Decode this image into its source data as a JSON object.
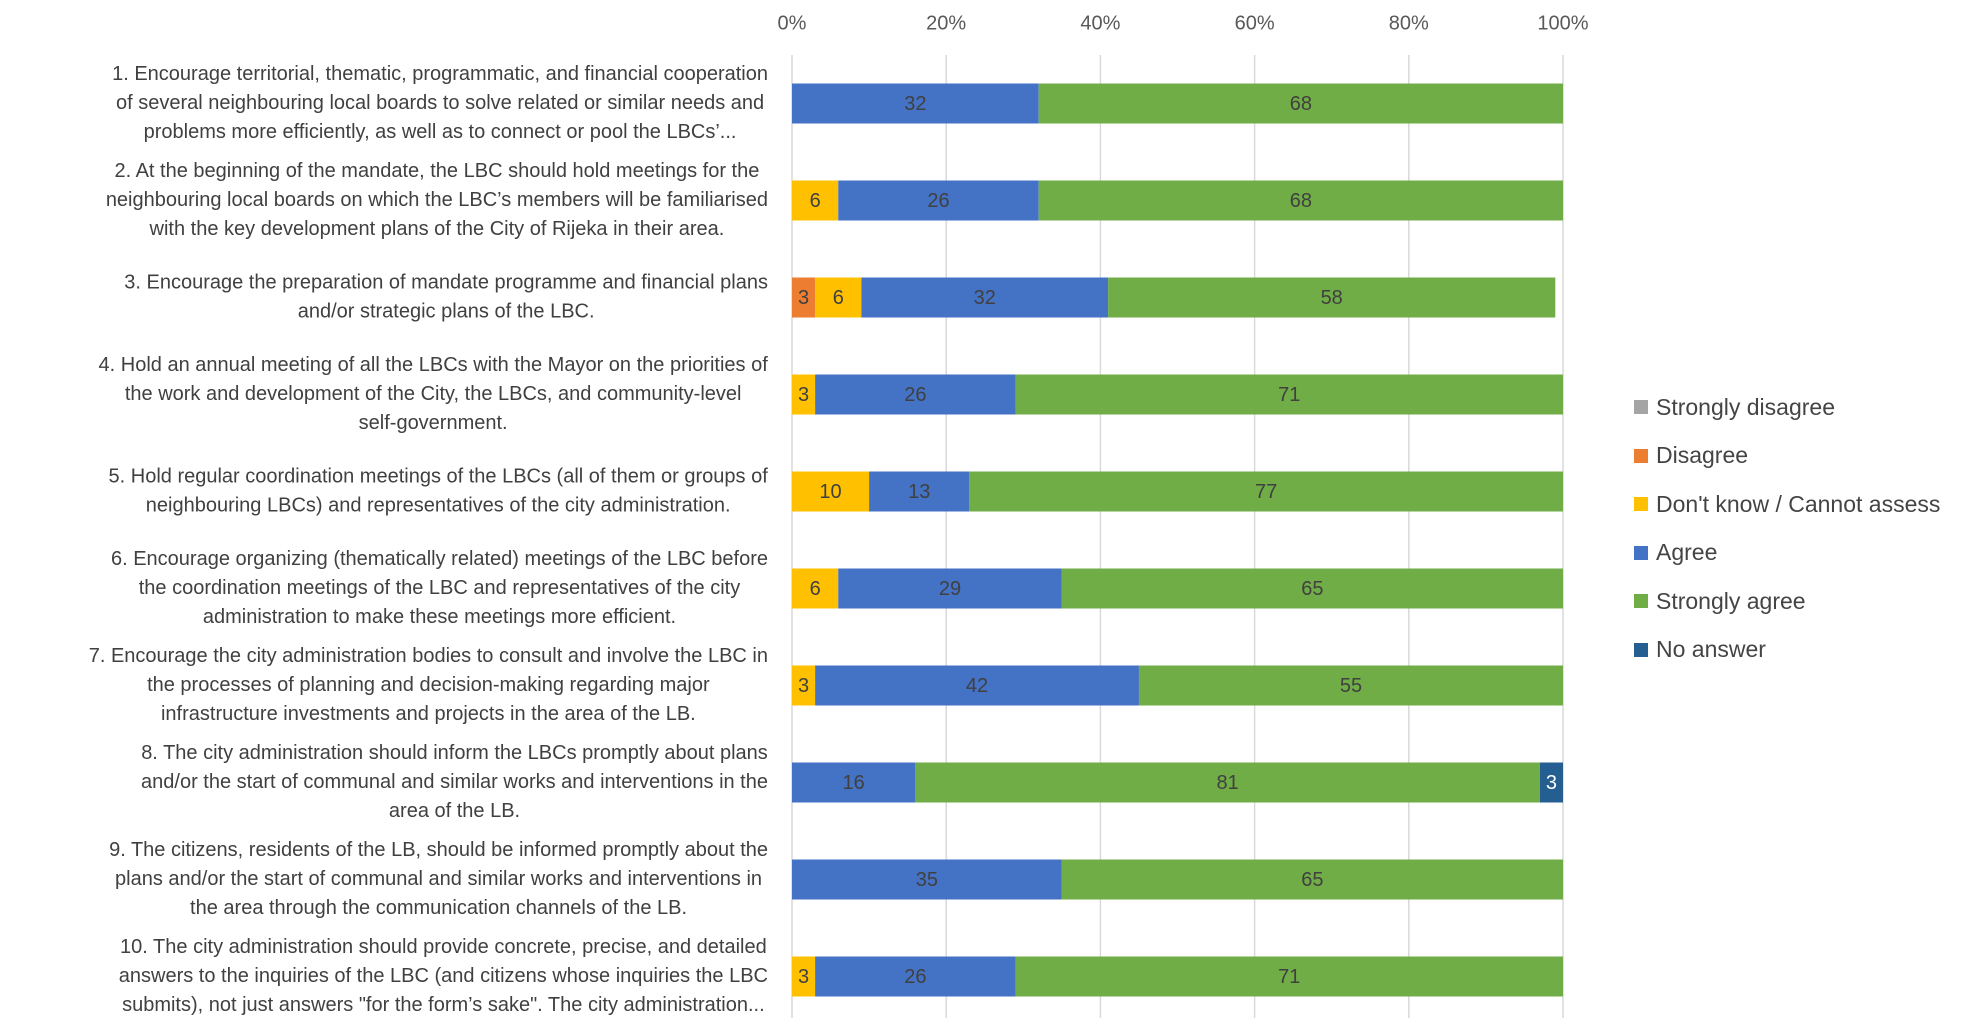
{
  "chart_data": {
    "type": "bar",
    "orientation": "horizontal",
    "stacked": "percent",
    "title": "",
    "xlabel": "",
    "ylabel": "",
    "xlim": [
      0,
      100
    ],
    "x_ticks": [
      "0%",
      "20%",
      "40%",
      "60%",
      "80%",
      "100%"
    ],
    "grid": true,
    "legend_position": "right",
    "categories": [
      [
        "1. Encourage territorial, thematic, programmatic, and financial cooperation",
        "of several neighbouring local boards to solve related or similar needs and",
        "problems more efficiently, as well as to connect or pool the LBCs’..."
      ],
      [
        "2. At the beginning of the mandate, the LBC should hold meetings for the",
        "neighbouring local boards on which the LBC’s members will be familiarised",
        "with the key development plans of the City of Rijeka in their area."
      ],
      [
        "3. Encourage the preparation of mandate programme and financial plans",
        "and/or strategic plans of the LBC."
      ],
      [
        "4. Hold an annual meeting of all the LBCs with the Mayor on the priorities of",
        "the work and development of the City, the LBCs, and community-level",
        "self-government."
      ],
      [
        "5. Hold regular coordination meetings of the LBCs (all of them or groups of",
        "neighbouring LBCs) and representatives of the city administration."
      ],
      [
        "6. Encourage organizing (thematically related) meetings of the LBC before",
        "the coordination meetings of the LBC and representatives of the city",
        "administration to make these meetings more efficient."
      ],
      [
        "7. Encourage the city administration bodies to consult and involve the LBC in",
        "the processes of planning and decision-making regarding major",
        "infrastructure investments and projects in the area of the LB."
      ],
      [
        "8. The city administration should inform the LBCs promptly about plans",
        "and/or the start of communal and similar works and interventions in the",
        "area of the LB."
      ],
      [
        "9. The citizens, residents of the LB, should be informed promptly about the",
        "plans and/or the start of communal and similar works and interventions in",
        "the area through the communication channels of the LB."
      ],
      [
        "10. The city administration should provide concrete, precise, and detailed",
        "answers to the inquiries of the LBC (and citizens whose inquiries the LBC",
        "submits), not just answers \"for the form’s sake\". The city administration..."
      ]
    ],
    "series": [
      {
        "name": "Strongly disagree",
        "color": "#A5A5A5",
        "values": [
          0,
          0,
          0,
          0,
          0,
          0,
          0,
          0,
          0,
          0
        ]
      },
      {
        "name": "Disagree",
        "color": "#ED7D31",
        "values": [
          0,
          0,
          3,
          0,
          0,
          0,
          0,
          0,
          0,
          0
        ]
      },
      {
        "name": "Don't know / Cannot assess",
        "color": "#FFC000",
        "values": [
          0,
          6,
          6,
          3,
          10,
          6,
          3,
          0,
          0,
          3
        ]
      },
      {
        "name": "Agree",
        "color": "#4472C4",
        "values": [
          32,
          26,
          32,
          26,
          13,
          29,
          42,
          16,
          35,
          26
        ]
      },
      {
        "name": "Strongly agree",
        "color": "#70AD47",
        "values": [
          68,
          68,
          58,
          71,
          77,
          65,
          55,
          81,
          65,
          71
        ]
      },
      {
        "name": "No answer",
        "color": "#255E91",
        "values": [
          0,
          0,
          0,
          0,
          0,
          0,
          0,
          3,
          0,
          0
        ]
      }
    ]
  }
}
